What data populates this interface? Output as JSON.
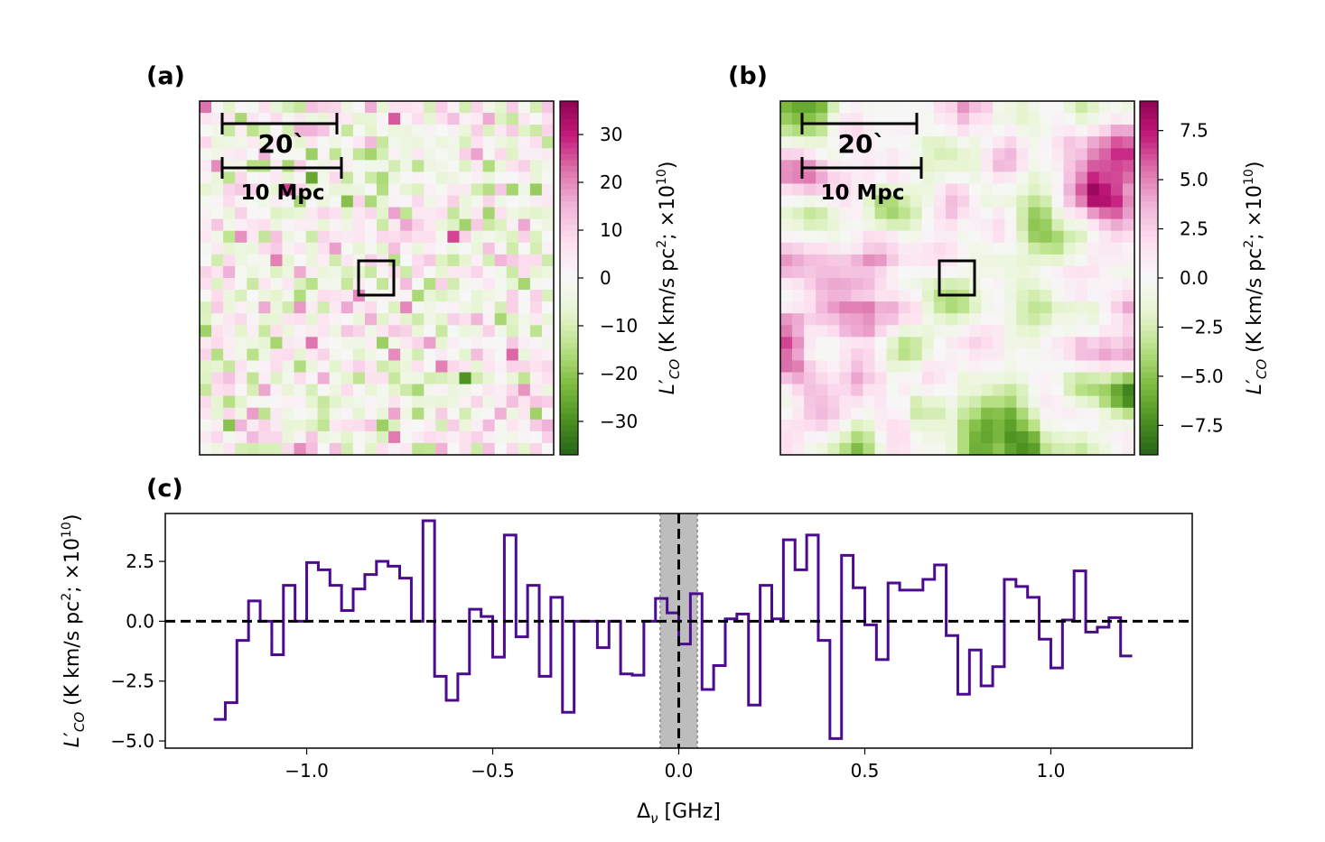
{
  "panels": {
    "a": {
      "label": "(a)"
    },
    "b": {
      "label": "(b)"
    },
    "c": {
      "label": "(c)"
    }
  },
  "scalebar": {
    "angular": "20`",
    "physical": "10 Mpc"
  },
  "colors": {
    "spectrum": "#4b0a8f",
    "pink_max": "#8e0152",
    "green_max": "#276419"
  },
  "chart_data": [
    {
      "panel": "(a)",
      "type": "heatmap",
      "grid_size": 30,
      "colorbar_label": "L'_{CO} (K km/s pc^2; ×10^10)",
      "colorbar_range": [
        -37,
        37
      ],
      "colorbar_ticks": [
        "30",
        "20",
        "10",
        "0",
        "−10",
        "−20",
        "−30"
      ],
      "colorbar_tick_values": [
        30,
        20,
        10,
        0,
        -10,
        -20,
        -30
      ],
      "seed": 7
    },
    {
      "panel": "(b)",
      "type": "heatmap",
      "grid_size": 30,
      "colorbar_label": "L'_{CO} (K km/s pc^2; ×10^10)",
      "colorbar_range": [
        -9,
        9
      ],
      "colorbar_ticks": [
        "7.5",
        "5.0",
        "2.5",
        "0.0",
        "−2.5",
        "−5.0",
        "−7.5"
      ],
      "colorbar_tick_values": [
        7.5,
        5.0,
        2.5,
        0.0,
        -2.5,
        -5.0,
        -7.5
      ],
      "seed": 11
    },
    {
      "panel": "(c)",
      "type": "line",
      "step": true,
      "xlabel": "Δ_ν [GHz]",
      "ylabel": "L'_{CO} (K km/s pc^2; ×10^10)",
      "xlim": [
        -1.38,
        1.38
      ],
      "ylim": [
        -5.3,
        4.5
      ],
      "x_ticks": [
        "−1.0",
        "−0.5",
        "0.0",
        "0.5",
        "1.0"
      ],
      "x_tick_values": [
        -1.0,
        -0.5,
        0.0,
        0.5,
        1.0
      ],
      "y_ticks": [
        "2.5",
        "0.0",
        "−2.5",
        "−5.0"
      ],
      "y_tick_values": [
        2.5,
        0.0,
        -2.5,
        -5.0
      ],
      "shaded_region": [
        -0.05,
        0.05
      ],
      "reference_lines": {
        "horizontal": 0.0,
        "vertical": 0.0
      },
      "x_start": -1.25,
      "bin_width": 0.03125,
      "values": [
        -4.1,
        -3.4,
        -0.8,
        0.85,
        0.0,
        -1.4,
        1.5,
        0.0,
        2.45,
        2.15,
        1.5,
        0.45,
        1.35,
        1.95,
        2.5,
        2.3,
        1.8,
        0.0,
        4.2,
        -2.3,
        -3.3,
        -2.2,
        0.5,
        0.2,
        -1.5,
        3.6,
        -0.65,
        1.5,
        -2.3,
        1.0,
        -3.8,
        0.0,
        0.0,
        -1.1,
        0.0,
        -2.2,
        -2.25,
        0.0,
        0.95,
        0.35,
        -0.95,
        1.15,
        -2.85,
        -1.85,
        0.1,
        0.3,
        -3.5,
        1.5,
        0.1,
        3.4,
        2.15,
        3.6,
        -0.8,
        -4.9,
        2.75,
        1.4,
        -0.15,
        -1.6,
        1.6,
        1.3,
        1.3,
        1.75,
        2.35,
        -0.6,
        -3.05,
        -1.2,
        -2.7,
        -1.9,
        1.75,
        1.45,
        1.0,
        -0.75,
        -1.95,
        0.05,
        2.1,
        -0.45,
        -0.25,
        0.15,
        -1.45
      ]
    }
  ]
}
